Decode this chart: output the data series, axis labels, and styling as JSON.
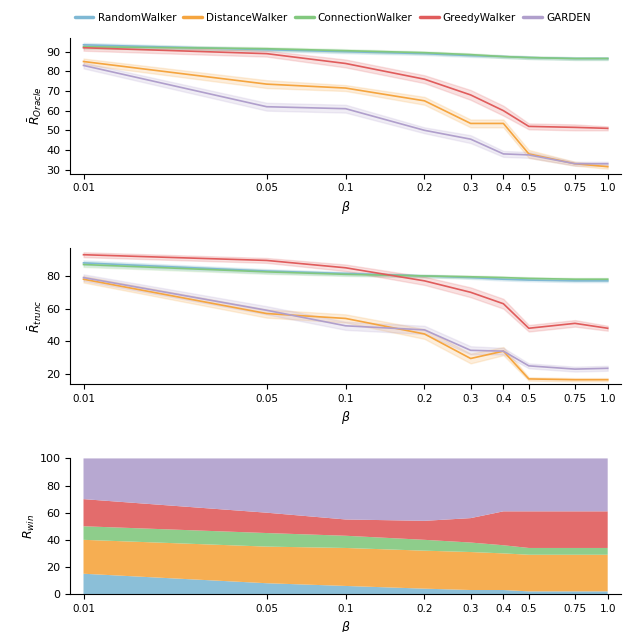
{
  "x_ticks": [
    0.01,
    0.05,
    0.1,
    0.2,
    0.3,
    0.4,
    0.5,
    0.75,
    1.0
  ],
  "x_labels": [
    "0.01",
    "0.05",
    "0.1",
    "0.2",
    "0.3",
    "0.4",
    "0.5",
    "0.75",
    "1.0"
  ],
  "colors": {
    "RandomWalker": "#7fb8d4",
    "DistanceWalker": "#f5a53f",
    "ConnectionWalker": "#82c87e",
    "GreedyWalker": "#e05c5c",
    "GARDEN": "#b09fcc"
  },
  "legend_labels": [
    "RandomWalker",
    "DistanceWalker",
    "ConnectionWalker",
    "GreedyWalker",
    "GARDEN"
  ],
  "plot1": {
    "ylabel": "$\\bar{R}_{Oracle}$",
    "ylim": [
      28,
      97
    ],
    "yticks": [
      30,
      40,
      50,
      60,
      70,
      80,
      90
    ],
    "RandomWalker": [
      93.5,
      91.0,
      90.0,
      89.0,
      88.0,
      87.5,
      87.0,
      86.5,
      86.5
    ],
    "DistanceWalker": [
      85.0,
      73.5,
      71.5,
      65.0,
      53.5,
      53.5,
      38.0,
      33.0,
      31.5
    ],
    "ConnectionWalker": [
      92.5,
      91.5,
      90.5,
      89.5,
      88.5,
      87.5,
      87.0,
      86.5,
      86.5
    ],
    "GreedyWalker": [
      92.0,
      89.0,
      84.0,
      76.0,
      68.0,
      60.0,
      52.0,
      51.5,
      51.0
    ],
    "GARDEN": [
      83.0,
      62.0,
      61.0,
      50.0,
      45.5,
      38.0,
      37.5,
      33.0,
      33.0
    ],
    "RandomWalker_std": [
      1.0,
      0.8,
      0.8,
      0.7,
      0.7,
      0.7,
      0.7,
      0.7,
      0.7
    ],
    "DistanceWalker_std": [
      1.5,
      2.0,
      1.5,
      2.0,
      2.0,
      2.0,
      2.0,
      1.0,
      1.0
    ],
    "ConnectionWalker_std": [
      1.0,
      0.8,
      0.8,
      0.7,
      0.7,
      0.7,
      0.7,
      0.7,
      0.7
    ],
    "GreedyWalker_std": [
      1.5,
      1.5,
      2.0,
      2.0,
      2.5,
      2.5,
      1.5,
      1.5,
      1.0
    ],
    "GARDEN_std": [
      1.5,
      2.0,
      2.0,
      1.5,
      2.0,
      1.5,
      1.5,
      1.0,
      1.0
    ]
  },
  "plot2": {
    "ylabel": "$\\bar{R}_{trunc}$",
    "ylim": [
      14,
      97
    ],
    "yticks": [
      20,
      40,
      60,
      80
    ],
    "RandomWalker": [
      88.0,
      83.0,
      81.5,
      80.0,
      79.0,
      78.0,
      77.5,
      77.0,
      77.0
    ],
    "DistanceWalker": [
      78.0,
      57.0,
      54.0,
      44.5,
      29.5,
      34.0,
      17.0,
      16.5,
      16.5
    ],
    "ConnectionWalker": [
      87.0,
      82.5,
      81.0,
      80.0,
      79.5,
      79.0,
      78.5,
      78.0,
      78.0
    ],
    "GreedyWalker": [
      93.0,
      89.5,
      85.0,
      77.0,
      70.0,
      63.0,
      48.0,
      51.0,
      48.0
    ],
    "GARDEN": [
      79.0,
      59.0,
      49.5,
      47.0,
      34.5,
      34.0,
      25.0,
      23.0,
      23.5
    ],
    "RandomWalker_std": [
      1.5,
      1.2,
      1.0,
      0.8,
      0.8,
      0.8,
      0.8,
      0.8,
      0.8
    ],
    "DistanceWalker_std": [
      2.0,
      2.5,
      2.5,
      3.0,
      3.0,
      2.5,
      1.0,
      1.0,
      1.0
    ],
    "ConnectionWalker_std": [
      1.5,
      1.2,
      1.0,
      0.8,
      0.8,
      0.8,
      0.8,
      0.8,
      0.8
    ],
    "GreedyWalker_std": [
      1.5,
      1.5,
      2.0,
      2.5,
      3.0,
      3.0,
      2.0,
      2.0,
      1.5
    ],
    "GARDEN_std": [
      2.0,
      2.5,
      2.5,
      2.5,
      2.5,
      2.0,
      1.5,
      1.5,
      1.5
    ]
  },
  "plot3": {
    "ylabel": "$R_{win}$",
    "ylim": [
      0,
      100
    ],
    "yticks": [
      0,
      20,
      40,
      60,
      80,
      100
    ],
    "RandomWalker": [
      15,
      8,
      6,
      4,
      3,
      3,
      2,
      2,
      2
    ],
    "DistanceWalker": [
      25,
      27,
      28,
      28,
      28,
      27,
      27,
      27,
      27
    ],
    "ConnectionWalker": [
      10,
      10,
      9,
      8,
      7,
      6,
      5,
      5,
      5
    ],
    "GreedyWalker": [
      20,
      15,
      12,
      14,
      18,
      25,
      27,
      27,
      27
    ],
    "GARDEN": [
      30,
      40,
      45,
      46,
      44,
      39,
      39,
      39,
      39
    ]
  }
}
